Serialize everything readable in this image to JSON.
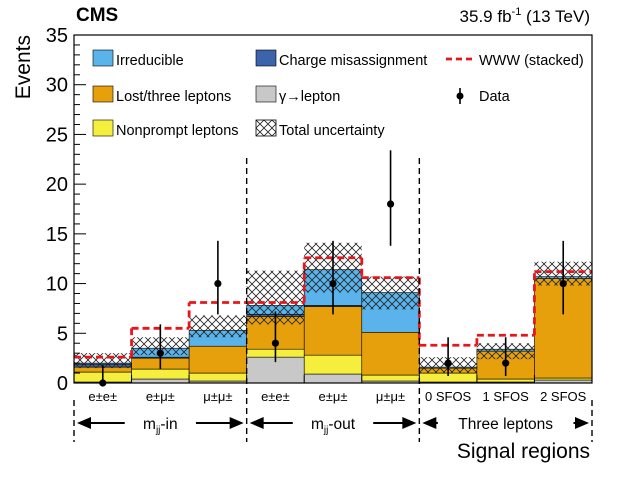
{
  "chart_data": {
    "type": "stacked-bar",
    "experiment": "CMS",
    "lumi_prefix": "35.9 fb",
    "lumi_exp": "-1",
    "lumi_suffix": " (13 TeV)",
    "ylabel": "Events",
    "xlabel": "Signal regions",
    "ylim": [
      0,
      35
    ],
    "y_ticks": [
      "0",
      "5",
      "10",
      "15",
      "20",
      "25",
      "30",
      "35"
    ],
    "categories": [
      "e±e±",
      "e±μ±",
      "μ±μ±",
      "e±e±",
      "e±μ±",
      "μ±μ±",
      "0 SFOS",
      "1 SFOS",
      "2 SFOS"
    ],
    "groups": [
      {
        "prefix": "m",
        "sub": "jj",
        "suffix": "-in"
      },
      {
        "prefix": "m",
        "sub": "jj",
        "suffix": "-out"
      },
      {
        "prefix": "Three leptons",
        "sub": "",
        "suffix": ""
      }
    ],
    "series": [
      {
        "name": "γ→lepton",
        "color": "#c8c8c8",
        "values": [
          0.1,
          0.4,
          0.2,
          2.6,
          0.9,
          0.2,
          0.1,
          0.1,
          0.3
        ]
      },
      {
        "name": "Nonprompt leptons",
        "color": "#f5ee3c",
        "values": [
          1.0,
          1.0,
          0.8,
          0.8,
          1.9,
          0.6,
          0.9,
          0.3,
          0.2
        ]
      },
      {
        "name": "Lost/three leptons",
        "color": "#e6a00c",
        "values": [
          0.5,
          1.1,
          2.7,
          3.3,
          4.9,
          4.3,
          0.5,
          2.8,
          10.0
        ]
      },
      {
        "name": "Charge misassignment",
        "color": "#3c64aa",
        "values": [
          0.3,
          0.1,
          0.0,
          0.2,
          0.1,
          0.0,
          0.0,
          0.0,
          0.0
        ]
      },
      {
        "name": "Irreducible",
        "color": "#5ab4eb",
        "values": [
          0.1,
          0.9,
          1.6,
          0.9,
          3.6,
          4.0,
          0.1,
          0.2,
          0.2
        ]
      }
    ],
    "www_stacked": [
      2.6,
      5.5,
      8.1,
      8.1,
      12.6,
      10.6,
      3.8,
      4.8,
      11.2
    ],
    "uncertainty_band": [
      [
        1.5,
        3.0
      ],
      [
        2.8,
        4.6
      ],
      [
        4.6,
        6.8
      ],
      [
        5.9,
        11.3
      ],
      [
        9.1,
        14.1
      ],
      [
        7.4,
        10.7
      ],
      [
        1.0,
        2.6
      ],
      [
        2.4,
        4.0
      ],
      [
        9.8,
        12.2
      ]
    ],
    "data": {
      "name": "Data",
      "values": [
        0,
        3,
        10,
        4,
        10,
        18,
        2,
        2,
        10
      ],
      "err_low": [
        0,
        1.6,
        3.1,
        1.9,
        3.1,
        4.2,
        1.3,
        1.3,
        3.1
      ],
      "err_high": [
        1.8,
        2.9,
        4.3,
        3.2,
        4.3,
        5.4,
        2.6,
        2.6,
        4.3
      ]
    },
    "legend": {
      "irreducible": "Irreducible",
      "charge": "Charge misassignment",
      "www": "WWW (stacked)",
      "lost": "Lost/three leptons",
      "gamma": "γ→lepton",
      "data": "Data",
      "nonprompt": "Nonprompt leptons",
      "total_unc": "Total uncertainty"
    },
    "colors": {
      "irreducible": "#5ab4eb",
      "charge": "#3c64aa",
      "lost": "#e6a00c",
      "gamma": "#c8c8c8",
      "nonprompt": "#f5ee3c",
      "www": "#e8161b"
    }
  }
}
